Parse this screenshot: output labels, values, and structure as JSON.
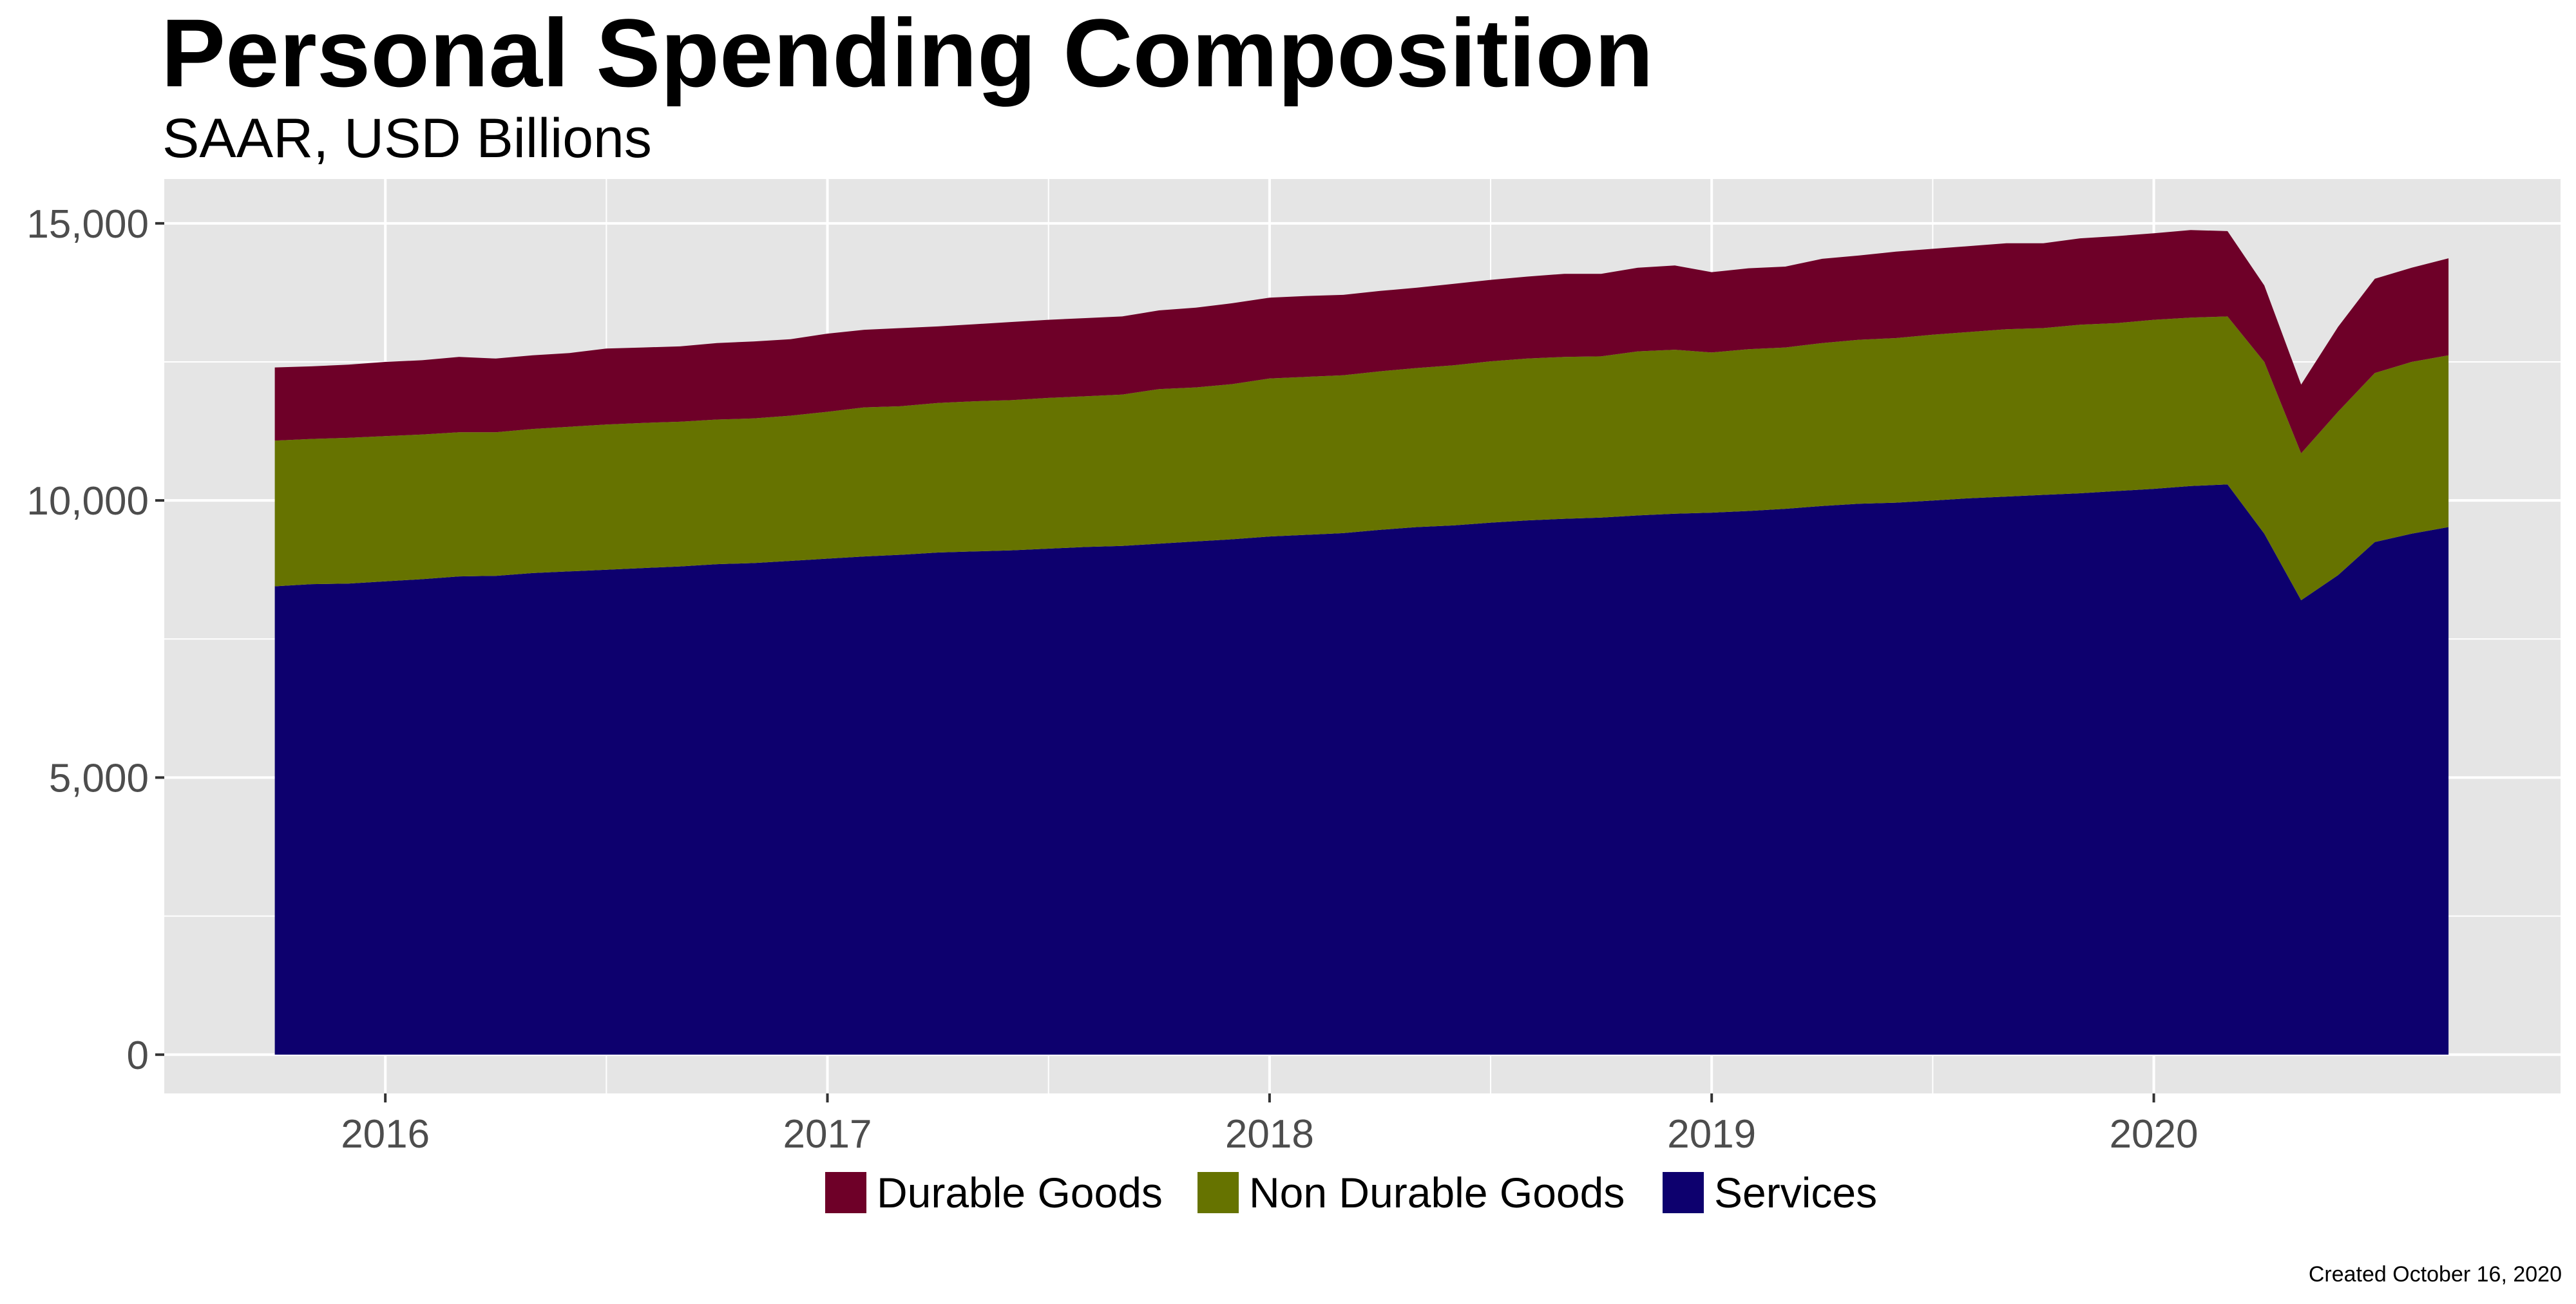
{
  "chart_data": {
    "type": "area",
    "stacked": true,
    "title": "Personal Spending Composition",
    "subtitle": "SAAR, USD Billions",
    "caption": "Created October 16, 2020",
    "xlabel": "",
    "ylabel": "",
    "x_start": "2015-10",
    "x_end": "2020-09",
    "x_ticks": [
      {
        "label": "2016",
        "value": 2016.0
      },
      {
        "label": "2017",
        "value": 2017.0
      },
      {
        "label": "2018",
        "value": 2018.0
      },
      {
        "label": "2019",
        "value": 2019.0
      },
      {
        "label": "2020",
        "value": 2020.0
      }
    ],
    "xlim": [
      2015.5,
      2020.92
    ],
    "y_ticks": [
      {
        "label": "0",
        "value": 0
      },
      {
        "label": "5,000",
        "value": 5000
      },
      {
        "label": "10,000",
        "value": 10000
      },
      {
        "label": "15,000",
        "value": 15000
      }
    ],
    "ylim": [
      -700,
      15800
    ],
    "grid": true,
    "legend_position": "bottom",
    "x": [
      "2015-10",
      "2015-11",
      "2015-12",
      "2016-01",
      "2016-02",
      "2016-03",
      "2016-04",
      "2016-05",
      "2016-06",
      "2016-07",
      "2016-08",
      "2016-09",
      "2016-10",
      "2016-11",
      "2016-12",
      "2017-01",
      "2017-02",
      "2017-03",
      "2017-04",
      "2017-05",
      "2017-06",
      "2017-07",
      "2017-08",
      "2017-09",
      "2017-10",
      "2017-11",
      "2017-12",
      "2018-01",
      "2018-02",
      "2018-03",
      "2018-04",
      "2018-05",
      "2018-06",
      "2018-07",
      "2018-08",
      "2018-09",
      "2018-10",
      "2018-11",
      "2018-12",
      "2019-01",
      "2019-02",
      "2019-03",
      "2019-04",
      "2019-05",
      "2019-06",
      "2019-07",
      "2019-08",
      "2019-09",
      "2019-10",
      "2019-11",
      "2019-12",
      "2020-01",
      "2020-02",
      "2020-03",
      "2020-04",
      "2020-05",
      "2020-06",
      "2020-07",
      "2020-08",
      "2020-09"
    ],
    "series": [
      {
        "name": "Services",
        "color": "#0d006e",
        "values": [
          8450,
          8490,
          8500,
          8540,
          8580,
          8630,
          8640,
          8690,
          8720,
          8750,
          8780,
          8810,
          8850,
          8870,
          8910,
          8950,
          8990,
          9020,
          9060,
          9080,
          9100,
          9130,
          9160,
          9180,
          9220,
          9260,
          9300,
          9350,
          9380,
          9410,
          9470,
          9520,
          9550,
          9600,
          9640,
          9670,
          9690,
          9730,
          9760,
          9780,
          9810,
          9850,
          9900,
          9940,
          9960,
          10000,
          10040,
          10070,
          10100,
          10130,
          10170,
          10210,
          10260,
          10290,
          9400,
          8200,
          8650,
          9250,
          9400,
          9520
        ]
      },
      {
        "name": "Non Durable Goods",
        "color": "#667300",
        "values": [
          2630,
          2620,
          2630,
          2620,
          2610,
          2600,
          2590,
          2600,
          2610,
          2620,
          2620,
          2610,
          2610,
          2610,
          2620,
          2650,
          2690,
          2680,
          2700,
          2710,
          2710,
          2720,
          2720,
          2730,
          2790,
          2780,
          2800,
          2850,
          2850,
          2850,
          2860,
          2870,
          2890,
          2910,
          2920,
          2920,
          2910,
          2960,
          2960,
          2890,
          2920,
          2910,
          2940,
          2960,
          2970,
          2990,
          3000,
          3020,
          3010,
          3040,
          3030,
          3050,
          3040,
          3030,
          3100,
          2650,
          2950,
          3050,
          3100,
          3100
        ]
      },
      {
        "name": "Durable Goods",
        "color": "#6e0028",
        "values": [
          1320,
          1310,
          1320,
          1340,
          1340,
          1360,
          1330,
          1330,
          1330,
          1370,
          1360,
          1360,
          1380,
          1390,
          1380,
          1410,
          1400,
          1410,
          1380,
          1390,
          1410,
          1410,
          1410,
          1410,
          1420,
          1440,
          1460,
          1460,
          1460,
          1450,
          1450,
          1450,
          1470,
          1470,
          1480,
          1500,
          1490,
          1510,
          1520,
          1450,
          1460,
          1460,
          1520,
          1520,
          1560,
          1550,
          1550,
          1550,
          1530,
          1560,
          1570,
          1560,
          1580,
          1540,
          1380,
          1240,
          1530,
          1700,
          1700,
          1750
        ]
      }
    ]
  }
}
